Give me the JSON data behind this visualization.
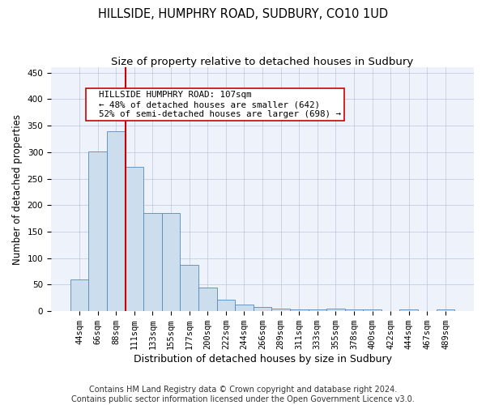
{
  "title": "HILLSIDE, HUMPHRY ROAD, SUDBURY, CO10 1UD",
  "subtitle": "Size of property relative to detached houses in Sudbury",
  "xlabel": "Distribution of detached houses by size in Sudbury",
  "ylabel": "Number of detached properties",
  "footer_line1": "Contains HM Land Registry data © Crown copyright and database right 2024.",
  "footer_line2": "Contains public sector information licensed under the Open Government Licence v3.0.",
  "bin_labels": [
    "44sqm",
    "66sqm",
    "88sqm",
    "111sqm",
    "133sqm",
    "155sqm",
    "177sqm",
    "200sqm",
    "222sqm",
    "244sqm",
    "266sqm",
    "289sqm",
    "311sqm",
    "333sqm",
    "355sqm",
    "378sqm",
    "400sqm",
    "422sqm",
    "444sqm",
    "467sqm",
    "489sqm"
  ],
  "bar_values": [
    60,
    301,
    340,
    272,
    185,
    185,
    88,
    45,
    22,
    12,
    8,
    5,
    4,
    3,
    5,
    4,
    3,
    0,
    3,
    0,
    3
  ],
  "bar_color": "#ccdded",
  "bar_edge_color": "#5588bb",
  "vline_x_index": 2.5,
  "vline_color": "#cc0000",
  "annotation_text": "  HILLSIDE HUMPHRY ROAD: 107sqm\n  ← 48% of detached houses are smaller (642)\n  52% of semi-detached houses are larger (698) →",
  "annotation_box_color": "#ffffff",
  "annotation_box_edge": "#cc0000",
  "ylim": [
    0,
    460
  ],
  "title_fontsize": 10.5,
  "subtitle_fontsize": 9.5,
  "xlabel_fontsize": 9,
  "ylabel_fontsize": 8.5,
  "tick_fontsize": 7.5,
  "annotation_fontsize": 7.8,
  "footer_fontsize": 7,
  "background_color": "#ffffff",
  "plot_bg_color": "#eef2fa"
}
